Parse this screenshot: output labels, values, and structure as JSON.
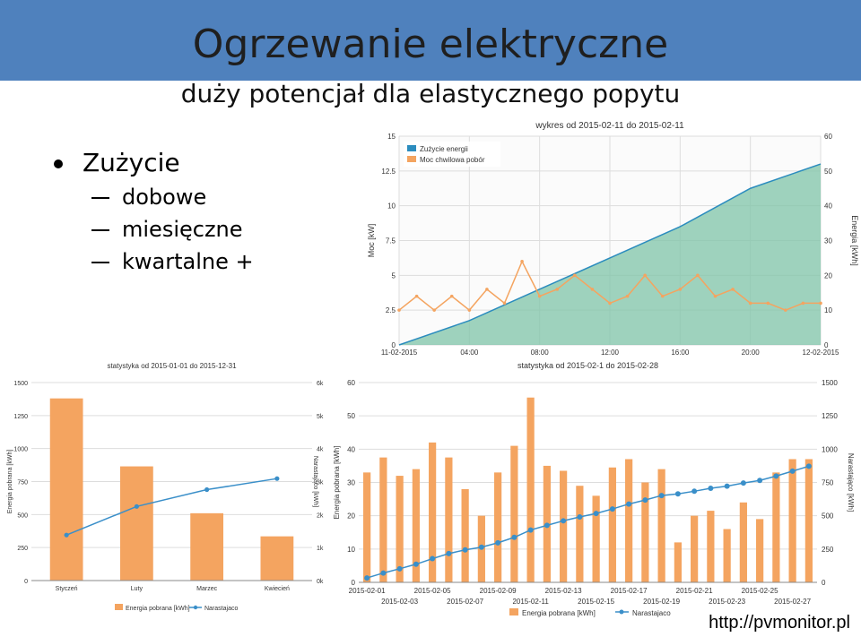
{
  "slide": {
    "title": "Ogrzewanie elektryczne",
    "subtitle": "duży potencjał dla elastycznego popytu",
    "bullet_main": "Zużycie",
    "bullet_sub": [
      "dobowe",
      "miesięczne",
      "kwartalne +"
    ],
    "url": "http://pvmonitor.pl"
  },
  "colors": {
    "header": "#4f81bd",
    "energy": "#2b8cbe",
    "power": "#f4a460",
    "bar": "#f4a460",
    "line": "#3a8fc9",
    "grid": "#dddddd"
  },
  "chart_data": [
    {
      "type": "area",
      "title": "wykres od 2015-02-11 do 2015-02-11",
      "ylabel_left": "Moc [kW]",
      "ylabel_right": "Energia [kWh]",
      "ylim_left": [
        0,
        15
      ],
      "ylim_right": [
        0,
        60
      ],
      "y_ticks_left": [
        "0",
        "2.5",
        "5",
        "7.5",
        "10",
        "12.5",
        "15"
      ],
      "y_ticks_right": [
        "0",
        "10",
        "20",
        "30",
        "40",
        "50",
        "60"
      ],
      "x_ticks": [
        "11-02-2015",
        "04:00",
        "08:00",
        "12:00",
        "16:00",
        "20:00",
        "12-02-2015"
      ],
      "legend": [
        "Zużycie energii",
        "Moc chwilowa pobór"
      ],
      "series": [
        {
          "name": "Zużycie energii",
          "axis": "right",
          "x_hours": [
            0,
            4,
            8,
            12,
            16,
            20,
            24
          ],
          "values": [
            0,
            7,
            16,
            25,
            34,
            45,
            52
          ]
        },
        {
          "name": "Moc chwilowa pobór",
          "axis": "left",
          "x_hours": [
            0,
            1,
            2,
            3,
            4,
            5,
            6,
            7,
            8,
            9,
            10,
            11,
            12,
            13,
            14,
            15,
            16,
            17,
            18,
            19,
            20,
            21,
            22,
            23,
            24
          ],
          "values": [
            2.5,
            3.5,
            2.5,
            3.5,
            2.5,
            4,
            3,
            6,
            3.5,
            4,
            5,
            4,
            3,
            3.5,
            5,
            3.5,
            4,
            5,
            3.5,
            4,
            3,
            3,
            2.5,
            3,
            3
          ]
        }
      ]
    },
    {
      "type": "bar",
      "title": "statystyka od 2015-01-01 do 2015-12-31",
      "ylabel_left": "Energia pobrana [kWh]",
      "ylabel_right": "Narastająco [kWh]",
      "categories": [
        "Styczeń",
        "Luty",
        "Marzec",
        "Kwiecień"
      ],
      "ylim_left": [
        0,
        1500
      ],
      "ylim_right": [
        0,
        6000
      ],
      "y_ticks_left": [
        "0",
        "250",
        "500",
        "750",
        "1000",
        "1250",
        "1500"
      ],
      "y_ticks_right": [
        "0k",
        "1k",
        "2k",
        "3k",
        "4k",
        "5k",
        "6k"
      ],
      "legend": [
        "Energia pobrana [kWh]",
        "Narastajaco"
      ],
      "series": [
        {
          "name": "Energia pobrana [kWh]",
          "values": [
            1380,
            865,
            510,
            335
          ]
        },
        {
          "name": "Narastajaco",
          "values": [
            1380,
            2245,
            2755,
            3090
          ]
        }
      ]
    },
    {
      "type": "bar",
      "title": "statystyka od 2015-02-1 do 2015-02-28",
      "ylabel_left": "Energia pobrana [kWh]",
      "ylabel_right": "Narastająco [kWh]",
      "ylim_left": [
        0,
        60
      ],
      "ylim_right": [
        0,
        1500
      ],
      "y_ticks_left": [
        "0",
        "10",
        "20",
        "30",
        "40",
        "50",
        "60"
      ],
      "y_ticks_right": [
        "0",
        "250",
        "500",
        "750",
        "1000",
        "1250",
        "1500"
      ],
      "x_ticks_top": [
        "2015-02-01",
        "2015-02-05",
        "2015-02-09",
        "2015-02-13",
        "2015-02-17",
        "2015-02-21",
        "2015-02-25"
      ],
      "x_ticks_bottom": [
        "2015-02-03",
        "2015-02-07",
        "2015-02-11",
        "2015-02-15",
        "2015-02-19",
        "2015-02-23",
        "2015-02-27"
      ],
      "legend": [
        "Energia pobrana [kWh]",
        "Narastajaco"
      ],
      "series": [
        {
          "name": "Energia pobrana [kWh]",
          "values": [
            33,
            37.5,
            32,
            34,
            42,
            37.5,
            28,
            20,
            33,
            41,
            55.5,
            35,
            33.5,
            29,
            26,
            34.5,
            37,
            30,
            34,
            12,
            20,
            21.5,
            16,
            24,
            19,
            33,
            37,
            37
          ]
        },
        {
          "name": "Narastajaco",
          "values": [
            33,
            70,
            102,
            136,
            178,
            216,
            244,
            264,
            297,
            338,
            393,
            428,
            462,
            491,
            517,
            551,
            588,
            618,
            652,
            664,
            684,
            706,
            722,
            746,
            765,
            798,
            835,
            872
          ]
        }
      ]
    }
  ]
}
